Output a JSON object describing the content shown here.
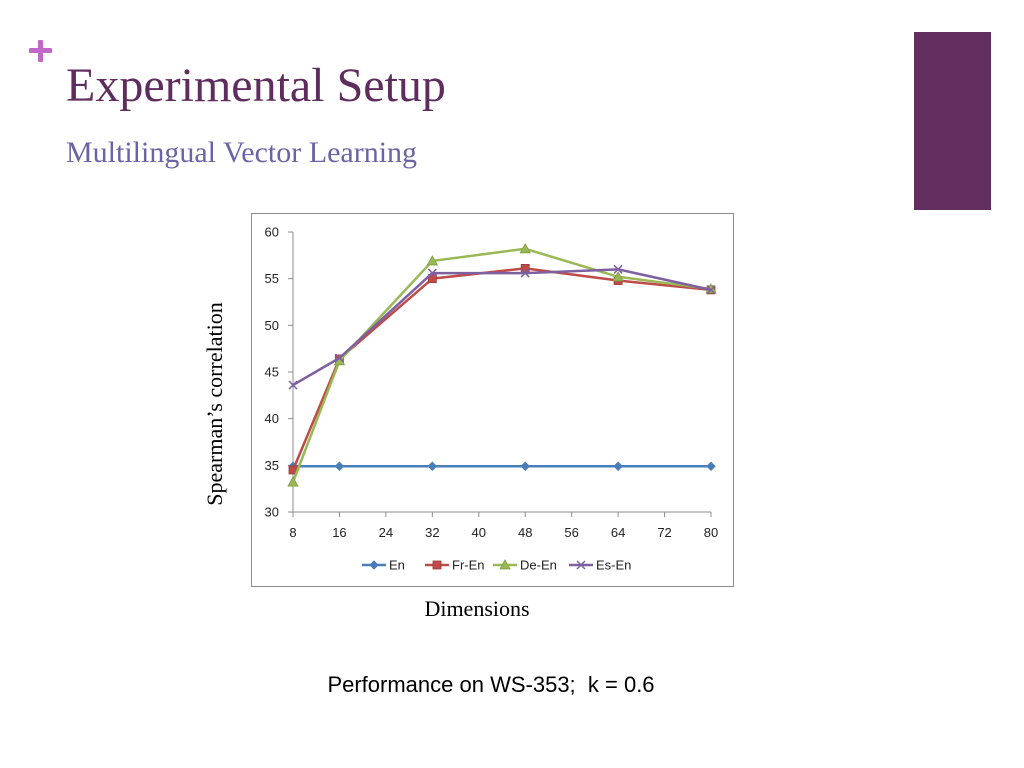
{
  "slide": {
    "title": "Experimental Setup",
    "subtitle": "Multilingual Vector Learning",
    "caption": "Performance on WS-353;  k = 0.6",
    "accent_color": "#622f60",
    "plus_color": "#c268c8"
  },
  "chart_data": {
    "type": "line",
    "title": "",
    "xlabel": "Dimensions",
    "ylabel": "Spearman’s correlation",
    "x": [
      8,
      16,
      32,
      48,
      64,
      80
    ],
    "xticks": [
      8,
      16,
      24,
      32,
      40,
      48,
      56,
      64,
      72,
      80
    ],
    "xlim": [
      8,
      80
    ],
    "yticks": [
      30,
      35,
      40,
      45,
      50,
      55,
      60
    ],
    "ylim": [
      30,
      60
    ],
    "grid": false,
    "legend_position": "bottom",
    "series": [
      {
        "name": "En",
        "color": "#4a7ebb",
        "marker": "diamond",
        "values": [
          34.9,
          34.9,
          34.9,
          34.9,
          34.9,
          34.9
        ]
      },
      {
        "name": "Fr-En",
        "color": "#be4b48",
        "marker": "square",
        "values": [
          34.5,
          46.4,
          55.0,
          56.1,
          54.8,
          53.8
        ]
      },
      {
        "name": "De-En",
        "color": "#98b954",
        "marker": "triangle",
        "values": [
          33.2,
          46.2,
          56.9,
          58.2,
          55.2,
          53.9
        ]
      },
      {
        "name": "Es-En",
        "color": "#7d60a0",
        "marker": "x",
        "values": [
          43.6,
          46.5,
          55.6,
          55.6,
          56.0,
          53.8
        ]
      }
    ]
  }
}
